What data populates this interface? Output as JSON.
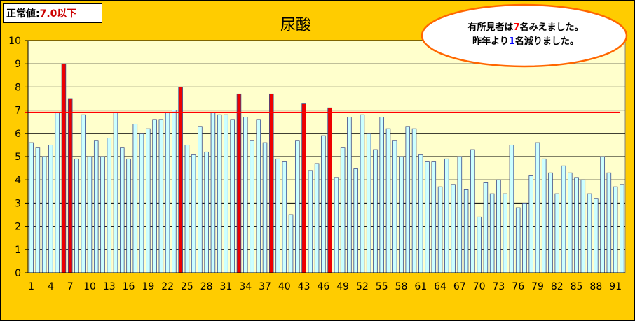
{
  "normal_box": {
    "label": "正常値:",
    "limit": "7.0以下"
  },
  "callout": {
    "line1_prefix": "有所見者は",
    "line1_num": "7",
    "line1_suffix": "名みえました。",
    "line2_prefix": "昨年より",
    "line2_num": "1",
    "line2_suffix": "名減りました。"
  },
  "colors": {
    "background": "#ffcc00",
    "plot_area": "#ffffcc",
    "bar_normal": "#ccffff",
    "bar_high": "#ee0000",
    "threshold_line": "#ff0000",
    "callout_border": "#ff6600"
  },
  "chart_data": {
    "type": "bar",
    "title": "尿酸",
    "ylim": [
      0,
      10
    ],
    "yticks": [
      0,
      1,
      2,
      3,
      4,
      5,
      6,
      7,
      8,
      9,
      10
    ],
    "xtick_labels": [
      1,
      4,
      7,
      10,
      13,
      16,
      19,
      22,
      25,
      28,
      31,
      34,
      37,
      40,
      43,
      46,
      49,
      52,
      55,
      58,
      61,
      64,
      67,
      70,
      73,
      76,
      79,
      82,
      85,
      88,
      91
    ],
    "threshold": 6.9,
    "grid": true,
    "values": [
      5.6,
      5.4,
      5.0,
      5.5,
      6.9,
      9.0,
      7.5,
      4.9,
      6.8,
      5.0,
      5.7,
      5.0,
      5.8,
      6.9,
      5.4,
      4.9,
      6.4,
      6.0,
      6.2,
      6.6,
      6.6,
      6.9,
      7.0,
      8.0,
      5.5,
      5.1,
      6.3,
      5.2,
      6.9,
      6.8,
      6.8,
      6.6,
      7.7,
      6.7,
      5.7,
      6.6,
      5.6,
      7.7,
      4.9,
      4.8,
      2.5,
      5.7,
      7.3,
      4.4,
      4.7,
      5.9,
      7.1,
      4.1,
      5.4,
      6.7,
      4.5,
      6.8,
      6.0,
      5.3,
      6.7,
      6.2,
      5.7,
      5.0,
      6.3,
      6.2,
      5.1,
      4.8,
      4.8,
      3.7,
      4.9,
      3.8,
      5.0,
      3.6,
      5.3,
      2.4,
      3.9,
      3.4,
      4.0,
      3.4,
      5.5,
      2.8,
      3.0,
      4.2,
      5.6,
      4.9,
      4.3,
      3.4,
      4.6,
      4.3,
      4.1,
      4.0,
      3.4,
      3.2,
      5.0,
      4.3,
      3.7,
      3.8
    ]
  }
}
